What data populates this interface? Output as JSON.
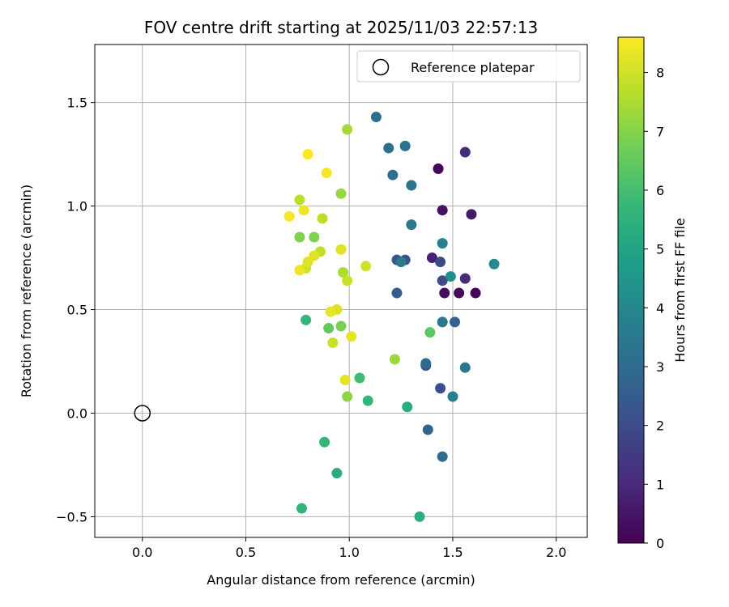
{
  "chart_data": {
    "type": "scatter",
    "title": "FOV centre drift starting at 2025/11/03 22:57:13",
    "xlabel": "Angular distance from reference (arcmin)",
    "ylabel": "Rotation from reference (arcmin)",
    "xlim": [
      -0.23,
      2.15
    ],
    "ylim": [
      -0.6,
      1.78
    ],
    "x_ticks": [
      0.0,
      0.5,
      1.0,
      1.5,
      2.0
    ],
    "x_tick_labels": [
      "0.0",
      "0.5",
      "1.0",
      "1.5",
      "2.0"
    ],
    "y_ticks": [
      -0.5,
      0.0,
      0.5,
      1.0,
      1.5
    ],
    "y_tick_labels": [
      "−0.5",
      "0.0",
      "0.5",
      "1.0",
      "1.5"
    ],
    "grid": true,
    "legend": {
      "position": "top-right",
      "entries": [
        {
          "label": "Reference platepar",
          "marker": "open-circle",
          "color": "#000000"
        }
      ]
    },
    "reference_point": {
      "x": 0.0,
      "y": 0.0,
      "label": "Reference platepar"
    },
    "colorbar": {
      "label": "Hours from first FF file",
      "range": [
        0,
        8.6
      ],
      "ticks": [
        0,
        1,
        2,
        3,
        4,
        5,
        6,
        7,
        8
      ],
      "tick_labels": [
        "0",
        "1",
        "2",
        "3",
        "4",
        "5",
        "6",
        "7",
        "8"
      ],
      "colormap": "viridis",
      "colormap_stops": [
        "#440154",
        "#482878",
        "#3e4989",
        "#31688e",
        "#26828e",
        "#1f9e89",
        "#35b779",
        "#6ece58",
        "#b5de2b",
        "#fde725"
      ]
    },
    "points": [
      {
        "x": 1.43,
        "y": 1.18,
        "t": 0.1
      },
      {
        "x": 1.61,
        "y": 0.58,
        "t": 0.1
      },
      {
        "x": 1.53,
        "y": 0.58,
        "t": 0.2
      },
      {
        "x": 1.46,
        "y": 0.58,
        "t": 0.3
      },
      {
        "x": 1.45,
        "y": 0.98,
        "t": 0.4
      },
      {
        "x": 1.59,
        "y": 0.96,
        "t": 0.6
      },
      {
        "x": 1.4,
        "y": 0.75,
        "t": 0.8
      },
      {
        "x": 1.56,
        "y": 0.65,
        "t": 1.0
      },
      {
        "x": 1.56,
        "y": 1.26,
        "t": 1.1
      },
      {
        "x": 1.44,
        "y": 0.73,
        "t": 1.9
      },
      {
        "x": 1.45,
        "y": 0.64,
        "t": 2.0
      },
      {
        "x": 1.44,
        "y": 0.12,
        "t": 2.1
      },
      {
        "x": 1.37,
        "y": 0.23,
        "t": 2.1
      },
      {
        "x": 1.27,
        "y": 0.74,
        "t": 2.2
      },
      {
        "x": 1.23,
        "y": 0.74,
        "t": 2.3
      },
      {
        "x": 1.23,
        "y": 0.58,
        "t": 2.5
      },
      {
        "x": 1.38,
        "y": -0.08,
        "t": 2.7
      },
      {
        "x": 1.51,
        "y": 0.44,
        "t": 2.7
      },
      {
        "x": 1.37,
        "y": 0.24,
        "t": 2.9
      },
      {
        "x": 1.45,
        "y": -0.21,
        "t": 3.0
      },
      {
        "x": 1.13,
        "y": 1.43,
        "t": 3.1
      },
      {
        "x": 1.21,
        "y": 1.15,
        "t": 3.1
      },
      {
        "x": 1.19,
        "y": 1.28,
        "t": 3.2
      },
      {
        "x": 1.27,
        "y": 1.29,
        "t": 3.2
      },
      {
        "x": 1.3,
        "y": 1.1,
        "t": 3.3
      },
      {
        "x": 1.45,
        "y": 0.44,
        "t": 3.4
      },
      {
        "x": 1.56,
        "y": 0.22,
        "t": 3.4
      },
      {
        "x": 1.3,
        "y": 0.91,
        "t": 3.4
      },
      {
        "x": 1.25,
        "y": 0.73,
        "t": 3.5
      },
      {
        "x": 1.45,
        "y": 0.82,
        "t": 3.8
      },
      {
        "x": 1.5,
        "y": 0.08,
        "t": 3.8
      },
      {
        "x": 1.7,
        "y": 0.72,
        "t": 4.1
      },
      {
        "x": 1.49,
        "y": 0.66,
        "t": 4.2
      },
      {
        "x": 1.28,
        "y": 0.03,
        "t": 5.3
      },
      {
        "x": 0.94,
        "y": -0.29,
        "t": 5.3
      },
      {
        "x": 1.34,
        "y": -0.5,
        "t": 5.4
      },
      {
        "x": 0.77,
        "y": -0.46,
        "t": 5.6
      },
      {
        "x": 1.09,
        "y": 0.06,
        "t": 5.6
      },
      {
        "x": 0.88,
        "y": -0.14,
        "t": 5.7
      },
      {
        "x": 0.79,
        "y": 0.45,
        "t": 5.7
      },
      {
        "x": 1.05,
        "y": 0.17,
        "t": 5.9
      },
      {
        "x": 1.39,
        "y": 0.39,
        "t": 6.4
      },
      {
        "x": 0.9,
        "y": 0.41,
        "t": 6.5
      },
      {
        "x": 0.96,
        "y": 0.42,
        "t": 6.8
      },
      {
        "x": 0.76,
        "y": 0.85,
        "t": 6.9
      },
      {
        "x": 0.83,
        "y": 0.85,
        "t": 6.9
      },
      {
        "x": 0.99,
        "y": 0.08,
        "t": 7.1
      },
      {
        "x": 0.96,
        "y": 1.06,
        "t": 7.2
      },
      {
        "x": 1.22,
        "y": 0.26,
        "t": 7.3
      },
      {
        "x": 0.99,
        "y": 1.37,
        "t": 7.4
      },
      {
        "x": 0.97,
        "y": 0.68,
        "t": 7.5
      },
      {
        "x": 0.87,
        "y": 0.94,
        "t": 7.7
      },
      {
        "x": 0.76,
        "y": 1.03,
        "t": 7.7
      },
      {
        "x": 0.86,
        "y": 0.78,
        "t": 7.8
      },
      {
        "x": 0.99,
        "y": 0.64,
        "t": 7.9
      },
      {
        "x": 0.92,
        "y": 0.34,
        "t": 7.9
      },
      {
        "x": 0.79,
        "y": 0.7,
        "t": 8.0
      },
      {
        "x": 1.08,
        "y": 0.71,
        "t": 8.0
      },
      {
        "x": 0.94,
        "y": 0.5,
        "t": 8.1
      },
      {
        "x": 0.8,
        "y": 0.73,
        "t": 8.2
      },
      {
        "x": 0.83,
        "y": 0.76,
        "t": 8.2
      },
      {
        "x": 0.96,
        "y": 0.79,
        "t": 8.2
      },
      {
        "x": 0.98,
        "y": 0.16,
        "t": 8.3
      },
      {
        "x": 0.91,
        "y": 0.49,
        "t": 8.3
      },
      {
        "x": 1.01,
        "y": 0.37,
        "t": 8.3
      },
      {
        "x": 0.76,
        "y": 0.69,
        "t": 8.4
      },
      {
        "x": 0.78,
        "y": 0.98,
        "t": 8.4
      },
      {
        "x": 0.89,
        "y": 1.16,
        "t": 8.5
      },
      {
        "x": 0.71,
        "y": 0.95,
        "t": 8.5
      },
      {
        "x": 0.8,
        "y": 1.25,
        "t": 8.6
      }
    ]
  }
}
